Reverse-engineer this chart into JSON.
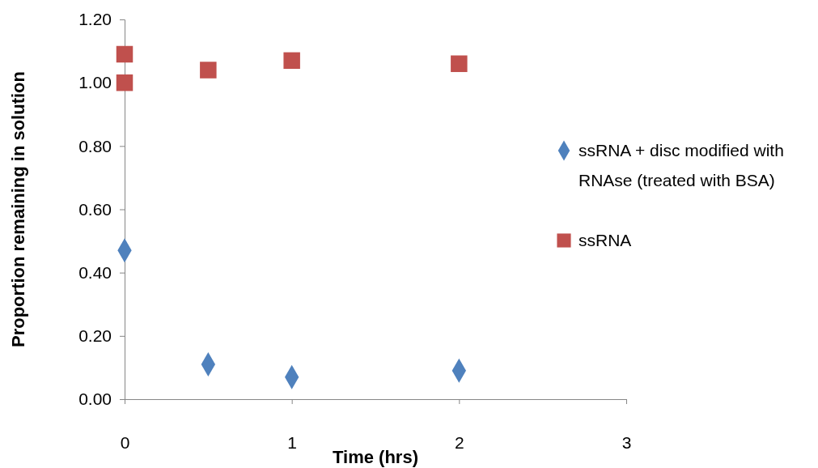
{
  "chart_data": {
    "type": "scatter",
    "xlabel": "Time (hrs)",
    "ylabel": "Proportion remaining in solution",
    "xlim": [
      0,
      3
    ],
    "xticks": [
      0,
      1,
      2,
      3
    ],
    "ylim": [
      0,
      1.2
    ],
    "yticks": [
      {
        "value": 0,
        "label": "0.00"
      },
      {
        "value": 0.2,
        "label": "0.20"
      },
      {
        "value": 0.4,
        "label": "0.40"
      },
      {
        "value": 0.6,
        "label": "0.60"
      },
      {
        "value": 0.8,
        "label": "0.80"
      },
      {
        "value": 1,
        "label": "1.00"
      },
      {
        "value": 1.2,
        "label": "1.20"
      }
    ],
    "grid": false,
    "legend": "right",
    "series": [
      {
        "name": "ssRNA + disc modified with RNAse (treated with BSA)",
        "color": "#4f81bd",
        "marker": "diamond",
        "x": [
          0,
          0.5,
          1,
          2
        ],
        "values": [
          0.47,
          0.11,
          0.07,
          0.09
        ]
      },
      {
        "name": "ssRNA",
        "color": "#c0504d",
        "marker": "square",
        "x": [
          0,
          0,
          0.5,
          1,
          2
        ],
        "values": [
          1.0,
          1.09,
          1.04,
          1.07,
          1.06
        ]
      }
    ]
  }
}
